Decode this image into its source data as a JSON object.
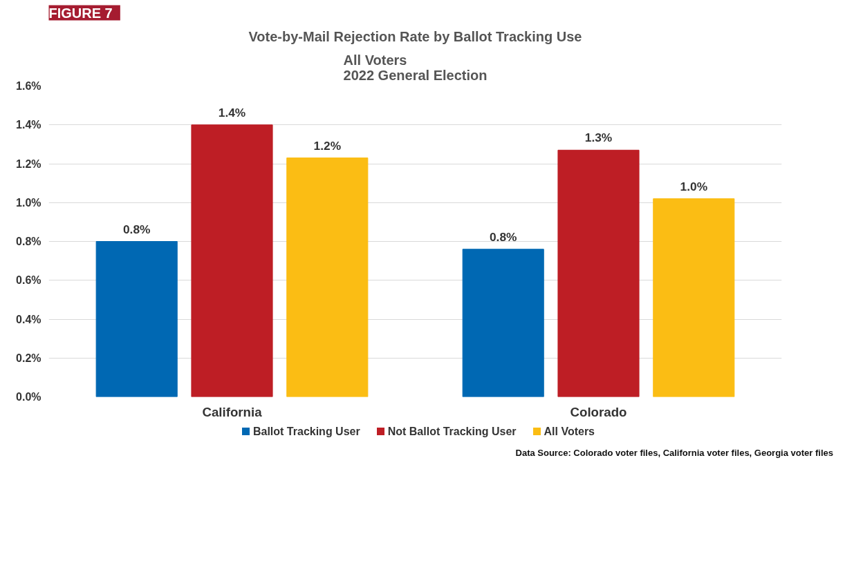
{
  "chart_data": {
    "type": "bar",
    "title": "Vote-by-Mail Rejection Rate by Ballot Tracking Use",
    "subtitle": "All Voters\n2022 General Election",
    "categories": [
      "California",
      "Colorado"
    ],
    "series": [
      {
        "name": "Ballot Tracking User",
        "color": "#0068b3",
        "values": [
          0.8,
          0.76
        ],
        "value_labels": [
          "0.8%",
          "0.8%"
        ]
      },
      {
        "name": "Not Ballot Tracking User",
        "color": "#be1e25",
        "values": [
          1.4,
          1.27
        ],
        "value_labels": [
          "1.4%",
          "1.3%"
        ]
      },
      {
        "name": "All Voters",
        "color": "#fbbd14",
        "values": [
          1.23,
          1.02
        ],
        "value_labels": [
          "1.2%",
          "1.0%"
        ]
      }
    ],
    "ylim": [
      0,
      1.6
    ],
    "yticks": [
      {
        "value": 0,
        "label": "0.0%"
      },
      {
        "value": 0.2,
        "label": "0.2%"
      },
      {
        "value": 0.4,
        "label": "0.4%"
      },
      {
        "value": 0.6,
        "label": "0.6%"
      },
      {
        "value": 0.8,
        "label": "0.8%"
      },
      {
        "value": 1.0,
        "label": "1.0%"
      },
      {
        "value": 1.2,
        "label": "1.2%"
      },
      {
        "value": 1.4,
        "label": "1.4%"
      },
      {
        "value": 1.6,
        "label": "1.6%"
      }
    ],
    "grid": "y",
    "legend": "bottom",
    "annotations": [
      "FIGURE 7",
      "Data Source: Colorado voter files, California voter files, Georgia voter files"
    ]
  }
}
